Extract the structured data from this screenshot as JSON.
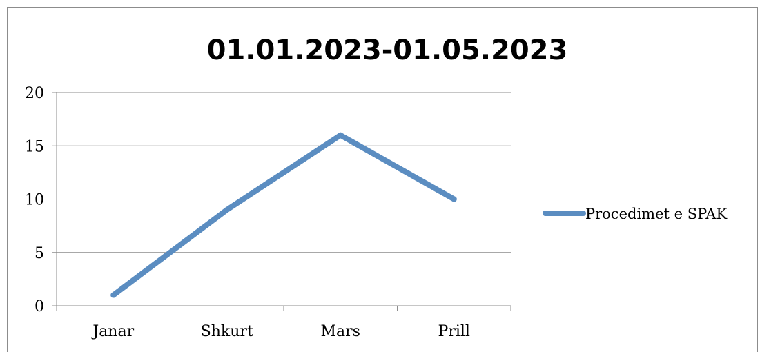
{
  "chart_data": {
    "type": "line",
    "title": "01.01.2023-01.05.2023",
    "xlabel": "",
    "ylabel": "",
    "categories": [
      "Janar",
      "Shkurt",
      "Mars",
      "Prill"
    ],
    "series": [
      {
        "name": "Procedimet e SPAK",
        "values": [
          1,
          9,
          16,
          10
        ],
        "color": "#5B8DC1"
      }
    ],
    "ylim": [
      0,
      20
    ],
    "yticks": [
      "0",
      "5",
      "10",
      "15",
      "20"
    ],
    "grid": true,
    "legend": "right"
  }
}
